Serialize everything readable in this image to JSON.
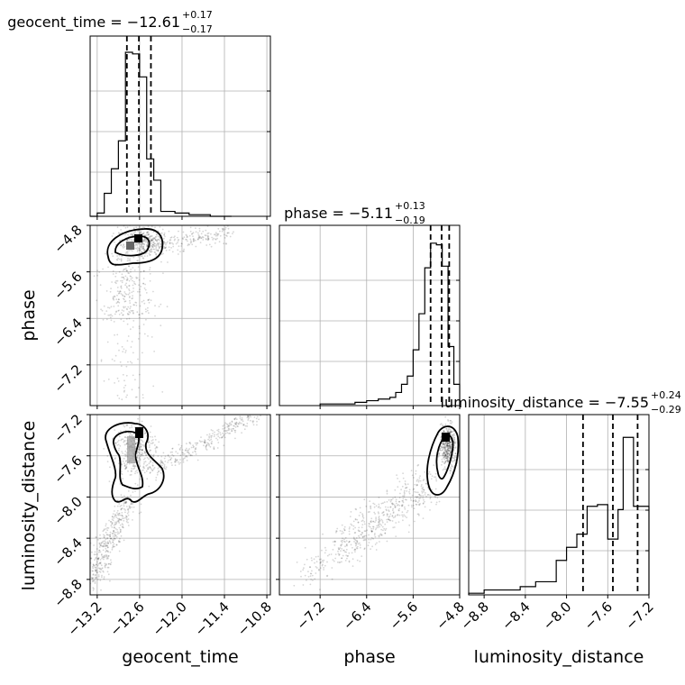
{
  "chart_data": {
    "type": "scatter",
    "subtype": "corner-plot",
    "parameters": [
      "geocent_time",
      "phase",
      "luminosity_distance"
    ],
    "titles": [
      {
        "param": "geocent_time",
        "label": "geocent_time = −12.61",
        "median": -12.61,
        "plus": "+0.17",
        "minus": "−0.17"
      },
      {
        "param": "phase",
        "label": "phase = −5.11",
        "median": -5.11,
        "plus": "+0.13",
        "minus": "−0.19"
      },
      {
        "param": "luminosity_distance",
        "label": "luminosity_distance = −7.55",
        "median": -7.55,
        "plus": "+0.24",
        "minus": "−0.29"
      }
    ],
    "axes": {
      "geocent_time": {
        "range": [
          -13.3,
          -10.75
        ],
        "ticks": [
          -13.2,
          -12.6,
          -12.0,
          -11.4,
          -10.8
        ],
        "tick_labels": [
          "−13.2",
          "−12.6",
          "−12.0",
          "−11.4",
          "−10.8"
        ],
        "xlabel": "geocent_time"
      },
      "phase": {
        "range": [
          -7.9,
          -4.8
        ],
        "ticks": [
          -7.2,
          -6.4,
          -5.6,
          -4.8
        ],
        "tick_labels": [
          "−7.2",
          "−6.4",
          "−5.6",
          "−4.8"
        ],
        "xlabel": "phase",
        "ylabel": "phase"
      },
      "luminosity_distance": {
        "range": [
          -8.95,
          -7.2
        ],
        "ticks": [
          -8.8,
          -8.4,
          -8.0,
          -7.6,
          -7.2
        ],
        "tick_labels": [
          "−8.8",
          "−8.4",
          "−8.0",
          "−7.6",
          "−7.2"
        ],
        "xlabel": "luminosity_distance",
        "ylabel": "luminosity_distance"
      }
    },
    "histograms": {
      "geocent_time": {
        "bin_edges": [
          -13.3,
          -13.2,
          -13.1,
          -13.0,
          -12.9,
          -12.8,
          -12.7,
          -12.6,
          -12.5,
          -12.4,
          -12.3,
          -12.2,
          -12.1,
          -12.0,
          -11.9,
          -11.8,
          -11.7,
          -11.6,
          -11.5,
          -11.4,
          -11.3
        ],
        "counts": [
          0.0,
          0.02,
          0.14,
          0.29,
          0.46,
          1.0,
          0.99,
          0.85,
          0.35,
          0.22,
          0.03,
          0.03,
          0.02,
          0.02,
          0.01,
          0.01,
          0.01,
          0.0,
          0.0,
          0.0
        ],
        "quantiles": [
          -12.78,
          -12.61,
          -12.44
        ]
      },
      "phase": {
        "bin_edges": [
          -7.2,
          -6.6,
          -6.4,
          -6.2,
          -6.0,
          -5.9,
          -5.8,
          -5.7,
          -5.6,
          -5.5,
          -5.4,
          -5.3,
          -5.2,
          -5.1,
          -5.0,
          -4.9,
          -4.8
        ],
        "counts": [
          0.01,
          0.02,
          0.03,
          0.04,
          0.05,
          0.08,
          0.13,
          0.18,
          0.34,
          0.56,
          0.84,
          0.99,
          0.98,
          0.85,
          0.36,
          0.13
        ],
        "quantiles": [
          -5.3,
          -5.11,
          -4.98
        ]
      },
      "luminosity_distance": {
        "bin_edges": [
          -8.95,
          -8.8,
          -8.6,
          -8.45,
          -8.3,
          -8.1,
          -8.0,
          -7.9,
          -7.8,
          -7.7,
          -7.6,
          -7.5,
          -7.45,
          -7.35,
          -7.2
        ],
        "counts": [
          0.01,
          0.03,
          0.03,
          0.05,
          0.08,
          0.21,
          0.29,
          0.37,
          0.54,
          0.55,
          0.34,
          0.52,
          0.96,
          0.54
        ],
        "quantiles": [
          -7.84,
          -7.55,
          -7.31
        ]
      }
    },
    "contour_levels": [
      "inner",
      "outer"
    ],
    "grid": true
  }
}
